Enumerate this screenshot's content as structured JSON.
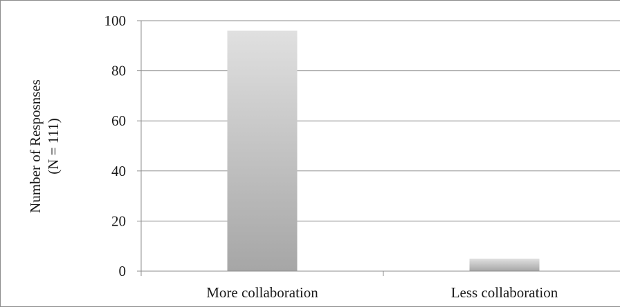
{
  "chart_data": {
    "type": "bar",
    "categories": [
      "More collaboration",
      "Less collaboration"
    ],
    "values": [
      96,
      5
    ],
    "ylabel_lines": [
      "Number of Resposnses",
      "(N = 111)"
    ],
    "ylim": [
      0,
      100
    ],
    "yticks": [
      0,
      20,
      40,
      60,
      80,
      100
    ],
    "grid": true,
    "colors": {
      "bar_top": "#e0e0e0",
      "bar_bottom": "#a6a6a6",
      "gridline": "#8c8c8c",
      "axis": "#8c8c8c"
    }
  }
}
